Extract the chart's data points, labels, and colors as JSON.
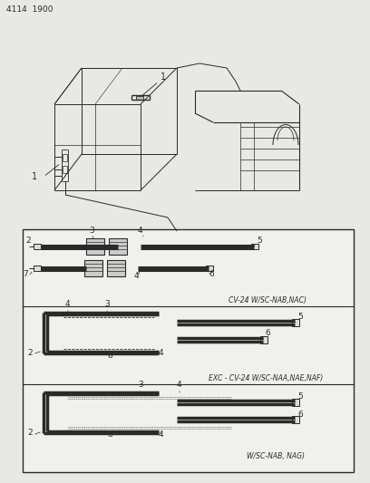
{
  "title": "4114  1900",
  "bg_color": "#e8e8e4",
  "line_color": "#2a2a2a",
  "text_color": "#2a2a2a",
  "label1": "CV-24 W/SC-NAB,NAC)",
  "label2": "EXC - CV-24 W/SC-NAA,NAE,NAF)",
  "label3": "W/SC-NAB, NAG)",
  "box_bg": "#f0f0ec"
}
